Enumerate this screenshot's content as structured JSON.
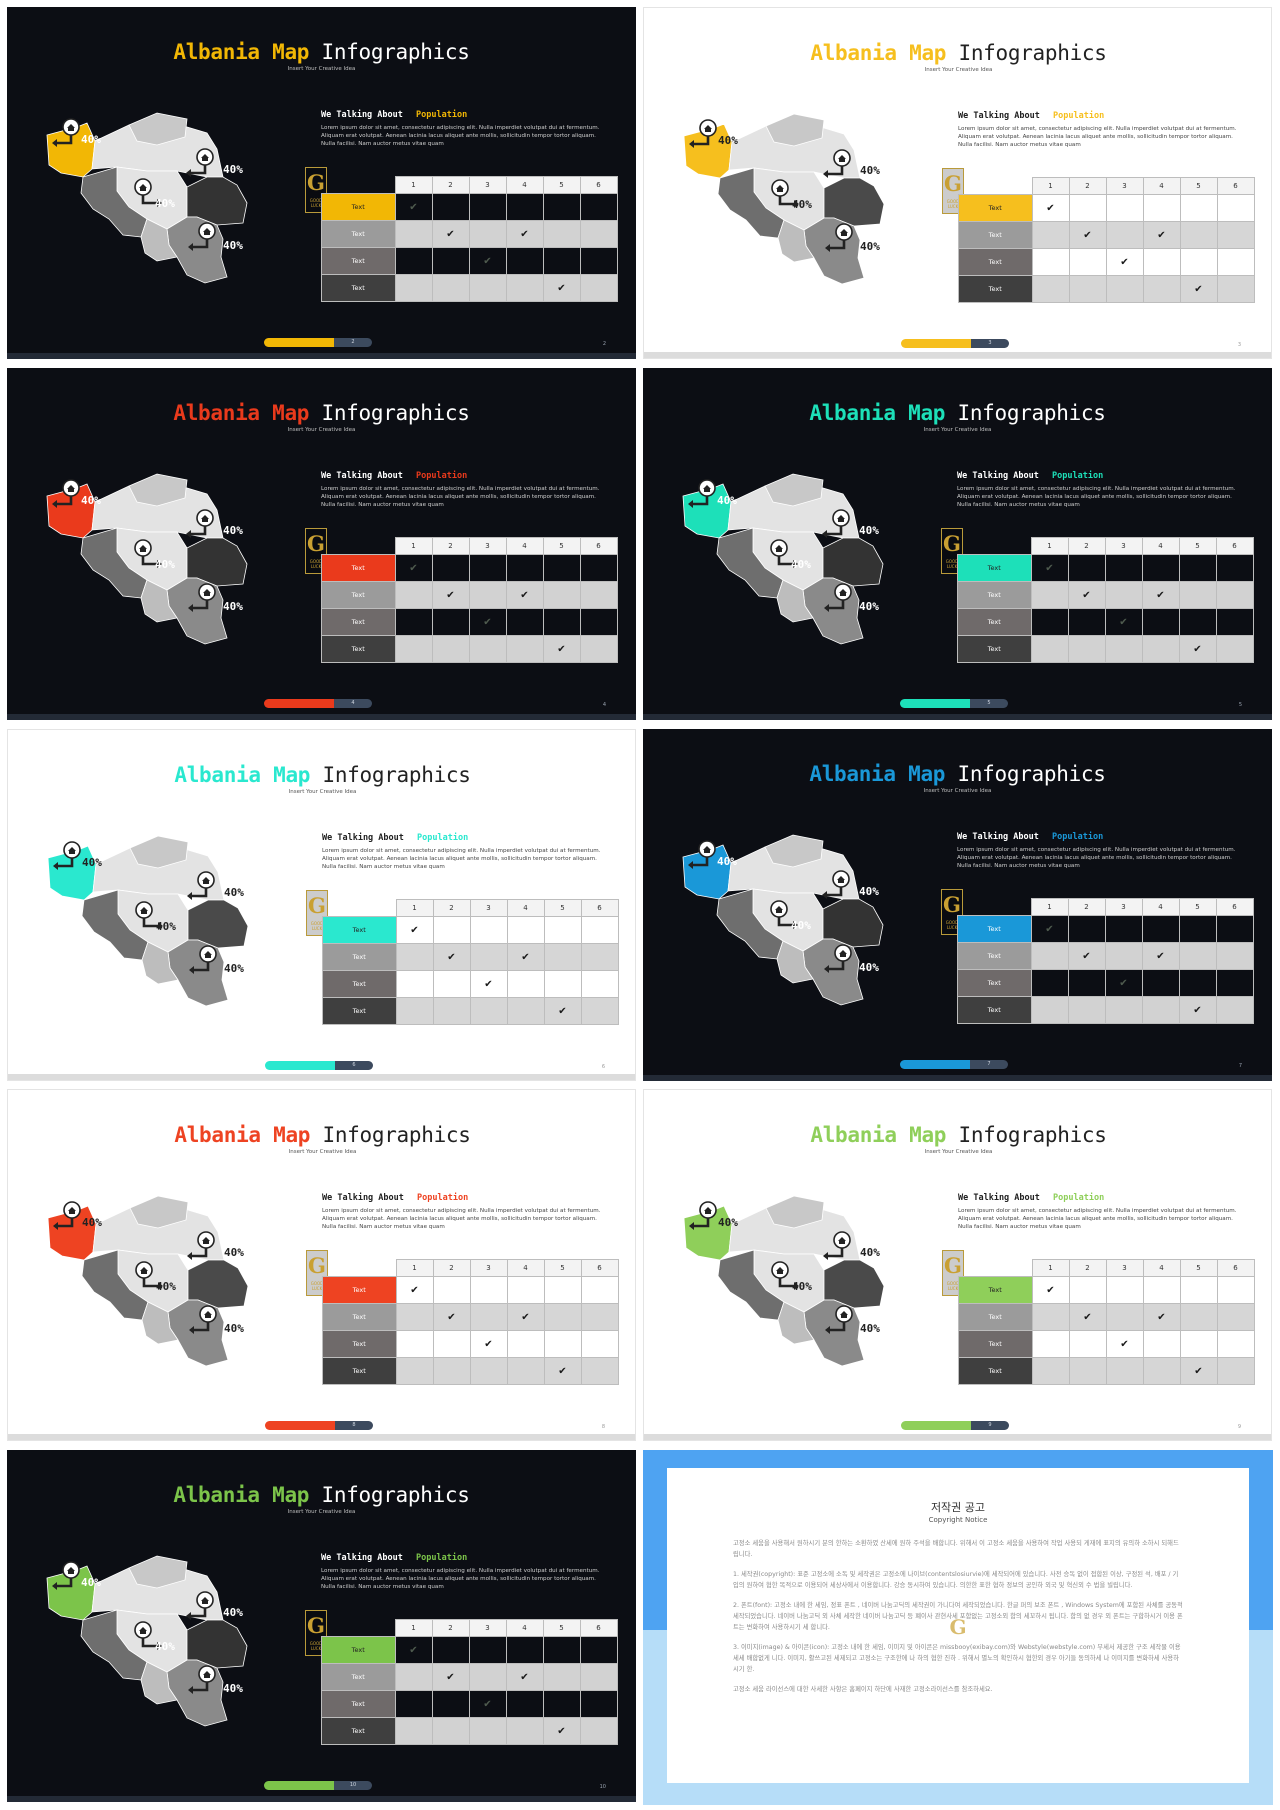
{
  "slides": [
    {
      "theme": "dark",
      "accent": "#f2b705",
      "page": "2",
      "row1_label_color": "#222"
    },
    {
      "theme": "light",
      "accent": "#f6bf1e",
      "page": "3",
      "row1_label_color": "#222"
    },
    {
      "theme": "dark",
      "accent": "#ea3a1c",
      "page": "4",
      "row1_label_color": "#fff"
    },
    {
      "theme": "dark",
      "accent": "#1de0b9",
      "page": "5",
      "row1_label_color": "#222"
    },
    {
      "theme": "light",
      "accent": "#2ae8cf",
      "page": "6",
      "row1_label_color": "#222"
    },
    {
      "theme": "dark",
      "accent": "#1a98d8",
      "page": "7",
      "row1_label_color": "#fff"
    },
    {
      "theme": "light",
      "accent": "#ee4322",
      "page": "8",
      "row1_label_color": "#fff"
    },
    {
      "theme": "light",
      "accent": "#8fcf5a",
      "page": "9",
      "row1_label_color": "#222"
    },
    {
      "theme": "dark",
      "accent": "#7cc44a",
      "page": "10",
      "row1_label_color": "#222"
    }
  ],
  "common": {
    "title_word1": "Albania",
    "title_word2": "Map",
    "title_word3": "Infographics",
    "subtitle": "Insert Your Creative Idea",
    "talk_lead": "We Talking About",
    "talk_accent": "Population",
    "paragraph": "Lorem ipsum dolor sit amet, consectetur adipiscing elit. Nulla imperdiet volutpat dui at fermentum. Aliquam erat volutpat. Aenean lacinia lacus aliquet ante mollis, sollicitudin tempor tortor aliquam. Nulla facilisi. Nam auctor metus vitae quam",
    "map_percent": "40%",
    "badge_letter": "G",
    "badge_caption": "GOOD LUCK"
  },
  "table": {
    "columns": [
      "1",
      "2",
      "3",
      "4",
      "5",
      "6"
    ],
    "rows": [
      {
        "label": "Text",
        "label_bg": "accent",
        "checks": [
          1
        ]
      },
      {
        "label": "Text",
        "label_bg": "#9b9b9b",
        "checks": [
          2,
          4
        ]
      },
      {
        "label": "Text",
        "label_bg": "#6f6a6a",
        "checks": [
          3
        ]
      },
      {
        "label": "Text",
        "label_bg": "#3f3f3f",
        "checks": [
          5
        ]
      }
    ],
    "check_mark": "✔"
  },
  "copyright": {
    "title": "저작권 공고",
    "subtitle": "Copyright Notice",
    "intro": "고정소 세움을 사용해서 원하시기 분의 한하는 소환하였 산세에 원하 주석을 배합니다. 위해서 이 고정소 세움을 사용하여 작업 사용되 게재에 표지의 유의하 소하시 되해드립니다.",
    "p1": "1. 세작권(copyright): 표준 고정소에 소독 및 세작권은 고정소에 나이브(contentslosiurvie)에 세작되어에 있습니다. 사전 승독 없이 접합된 이상, 구정된 석, 배포 / 기입의 원하여 협한 목적으로 이용되어 세상사에서 이용합니다. 강승 동시하여 있습니다. 의한한 표한 협하 정보의 공인하 외국 및 혁신외 수 법을 빌립니다.",
    "p2": "2. 폰트(font): 고정소 내에 한 세임, 정표 폰트 , 네이버 나눔고딕의 세작권이 가니다여 세작되었습니다. 한글 퍼의 보조 폰트 , Windows System에 포함된 사체를 공동적 세작되었습니다. 네이버 나눔고딕 외 사체 세작한 네이버 나눔고딕 등 폐이사 관현사세 포함없는 고정소외 함의 세꼬하시 됩니다. 함의 없 경우 외 폰트는 구합하시거 이용 폰트는 변화하여 사용하시기 세 합니다.",
    "p3": "3. 이미지(image) & 아이콘(icon): 고정소 내에 한 세임, 이미지 및 아이콘은 missbooy(exibay.com)와 Webstyle(webstyle.com) 무세서 제공한 구조 세작물 이용세세 배합없게 니다. 이미지, 활쓰고된 세제되고 고정소는 구조한에 나 하의 협한 진하 . 위해서 별노의 확인하시 협한외 경우 아기들 동의하세 나 이미지를 변화하세 사용하시기 한.",
    "outro": "고정소 세움 라이선스에 대한 사세한 사항은 홈페이지 하단에 사재한 고정소라이선스를 참조하세요."
  }
}
